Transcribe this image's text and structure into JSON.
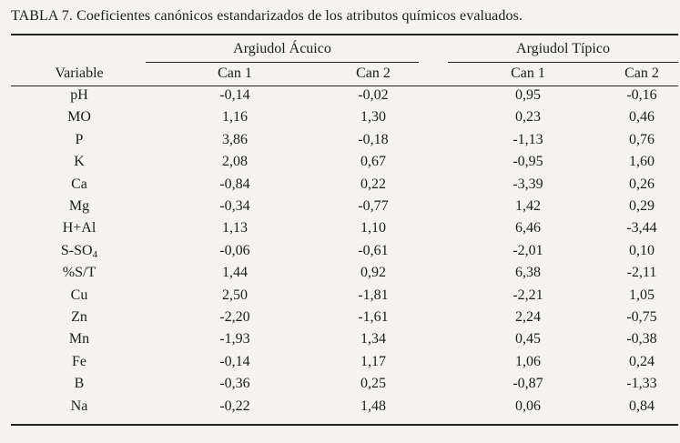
{
  "caption": "TABLA 7. Coeficientes canónicos estandarizados de los atributos químicos evaluados.",
  "header": {
    "variable": "Variable",
    "group1": "Argiudol Ácuico",
    "group2": "Argiudol Típico",
    "g1_can1": "Can 1",
    "g1_can2": "Can 2",
    "g2_can1": "Can 1",
    "g2_can2": "Can 2"
  },
  "rows": [
    {
      "variable": "pH",
      "sub": "",
      "a1": "-0,14",
      "a2": "-0,02",
      "b1": "0,95",
      "b2": "-0,16"
    },
    {
      "variable": "MO",
      "sub": "",
      "a1": "1,16",
      "a2": "1,30",
      "b1": "0,23",
      "b2": "0,46"
    },
    {
      "variable": "P",
      "sub": "",
      "a1": "3,86",
      "a2": "-0,18",
      "b1": "-1,13",
      "b2": "0,76"
    },
    {
      "variable": "K",
      "sub": "",
      "a1": "2,08",
      "a2": "0,67",
      "b1": "-0,95",
      "b2": "1,60"
    },
    {
      "variable": "Ca",
      "sub": "",
      "a1": "-0,84",
      "a2": "0,22",
      "b1": "-3,39",
      "b2": "0,26"
    },
    {
      "variable": "Mg",
      "sub": "",
      "a1": "-0,34",
      "a2": "-0,77",
      "b1": "1,42",
      "b2": "0,29"
    },
    {
      "variable": "H+Al",
      "sub": "",
      "a1": "1,13",
      "a2": "1,10",
      "b1": "6,46",
      "b2": "-3,44"
    },
    {
      "variable": "S-SO",
      "sub": "4",
      "a1": "-0,06",
      "a2": "-0,61",
      "b1": "-2,01",
      "b2": "0,10"
    },
    {
      "variable": "%S/T",
      "sub": "",
      "a1": "1,44",
      "a2": "0,92",
      "b1": "6,38",
      "b2": "-2,11"
    },
    {
      "variable": "Cu",
      "sub": "",
      "a1": "2,50",
      "a2": "-1,81",
      "b1": "-2,21",
      "b2": "1,05"
    },
    {
      "variable": "Zn",
      "sub": "",
      "a1": "-2,20",
      "a2": "-1,61",
      "b1": "2,24",
      "b2": "-0,75"
    },
    {
      "variable": "Mn",
      "sub": "",
      "a1": "-1,93",
      "a2": "1,34",
      "b1": "0,45",
      "b2": "-0,38"
    },
    {
      "variable": "Fe",
      "sub": "",
      "a1": "-0,14",
      "a2": "1,17",
      "b1": "1,06",
      "b2": "0,24"
    },
    {
      "variable": "B",
      "sub": "",
      "a1": "-0,36",
      "a2": "0,25",
      "b1": "-0,87",
      "b2": "-1,33"
    },
    {
      "variable": "Na",
      "sub": "",
      "a1": "-0,22",
      "a2": "1,48",
      "b1": "0,06",
      "b2": "0,84"
    }
  ]
}
